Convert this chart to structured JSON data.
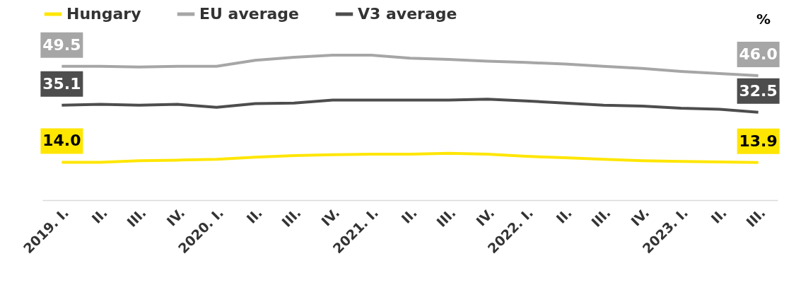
{
  "chart_data": {
    "type": "line",
    "categories": [
      "2019. I.",
      "II.",
      "III.",
      "IV.",
      "2020. I.",
      "II.",
      "III.",
      "IV.",
      "2021. I.",
      "II.",
      "III.",
      "IV.",
      "2022. I.",
      "II.",
      "III.",
      "IV.",
      "2023. I.",
      "II.",
      "III."
    ],
    "series": [
      {
        "name": "Hungary",
        "color": "#ffe600",
        "values": [
          14.0,
          14.0,
          14.6,
          14.8,
          15.1,
          15.9,
          16.5,
          16.8,
          17.0,
          17.0,
          17.3,
          17.0,
          16.2,
          15.7,
          15.1,
          14.6,
          14.3,
          14.1,
          13.9
        ],
        "value_labels": [
          "14.0",
          null,
          null,
          null,
          null,
          null,
          null,
          null,
          null,
          null,
          null,
          null,
          null,
          null,
          null,
          null,
          null,
          null,
          "13.9"
        ]
      },
      {
        "name": "EU average",
        "color": "#a6a6a6",
        "values": [
          49.5,
          49.5,
          49.2,
          49.5,
          49.5,
          51.7,
          52.8,
          53.6,
          53.6,
          52.5,
          52.0,
          51.4,
          50.9,
          50.3,
          49.5,
          48.7,
          47.6,
          46.8,
          46.0
        ],
        "value_labels": [
          "49.5",
          null,
          null,
          null,
          null,
          null,
          null,
          null,
          null,
          null,
          null,
          null,
          null,
          null,
          null,
          null,
          null,
          null,
          "46.0"
        ]
      },
      {
        "name": "V3 average",
        "color": "#4d4d4d",
        "values": [
          35.1,
          35.4,
          35.1,
          35.4,
          34.3,
          35.7,
          35.9,
          37.0,
          37.0,
          37.0,
          37.0,
          37.3,
          36.7,
          35.9,
          35.1,
          34.8,
          34.0,
          33.6,
          32.5
        ],
        "value_labels": [
          "35.1",
          null,
          null,
          null,
          null,
          null,
          null,
          null,
          null,
          null,
          null,
          null,
          null,
          null,
          null,
          null,
          null,
          null,
          "32.5"
        ]
      }
    ],
    "annotations": [
      "%"
    ],
    "legend": "top",
    "grid": false,
    "marker": "none",
    "line_style": "solid"
  }
}
